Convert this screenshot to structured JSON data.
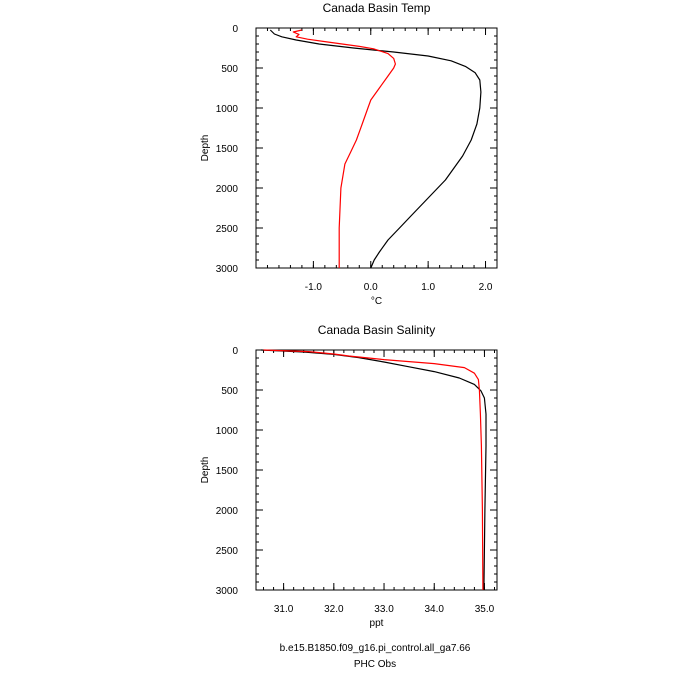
{
  "legend": {
    "model_label": "b.e15.B1850.f09_g16.pi_control.all_ga7.66",
    "obs_label": "PHC Obs",
    "model_color": "#000000",
    "obs_color": "#ff0000"
  },
  "chart_data": [
    {
      "type": "line",
      "title": "Canada Basin Temp",
      "xlabel": "°C",
      "ylabel": "Depth",
      "xlim": [
        -2.0,
        2.2
      ],
      "ylim": [
        3000,
        0
      ],
      "y_inverted": true,
      "xticks": [
        -1.0,
        0.0,
        1.0,
        2.0
      ],
      "xtick_labels": [
        "-1.0",
        "0.0",
        "1.0",
        "2.0"
      ],
      "yticks": [
        0,
        500,
        1000,
        1500,
        2000,
        2500,
        3000
      ],
      "ytick_labels": [
        "0",
        "500",
        "1000",
        "1500",
        "2000",
        "2500",
        "3000"
      ],
      "series": [
        {
          "name": "b.e15.B1850.f09_g16.pi_control.all_ga7.66",
          "color": "#000000",
          "x": [
            -1.75,
            -1.68,
            -1.55,
            -1.3,
            -0.9,
            -0.3,
            0.4,
            1.0,
            1.4,
            1.65,
            1.82,
            1.9,
            1.92,
            1.9,
            1.85,
            1.75,
            1.6,
            1.45,
            1.3,
            1.1,
            0.9,
            0.7,
            0.5,
            0.3,
            0.15,
            0.06,
            0.0
          ],
          "y": [
            25,
            75,
            110,
            150,
            200,
            250,
            300,
            350,
            410,
            480,
            560,
            650,
            800,
            1000,
            1200,
            1400,
            1600,
            1750,
            1900,
            2050,
            2200,
            2350,
            2500,
            2650,
            2800,
            2900,
            3000
          ]
        },
        {
          "name": "PHC Obs",
          "color": "#ff0000",
          "x": [
            -1.2,
            -1.35,
            -1.25,
            -1.3,
            -1.1,
            -0.8,
            -0.5,
            -0.2,
            0.05,
            0.3,
            0.4,
            0.43,
            0.4,
            0.3,
            0.15,
            0.0,
            -0.05,
            -0.15,
            -0.25,
            -0.35,
            -0.45,
            -0.52,
            -0.55,
            -0.55
          ],
          "y": [
            25,
            50,
            80,
            110,
            140,
            170,
            200,
            230,
            260,
            320,
            380,
            450,
            500,
            600,
            750,
            900,
            1000,
            1200,
            1400,
            1550,
            1700,
            2000,
            2500,
            3000
          ]
        }
      ]
    },
    {
      "type": "line",
      "title": "Canada Basin Salinity",
      "xlabel": "ppt",
      "ylabel": "Depth",
      "xlim": [
        30.45,
        35.25
      ],
      "ylim": [
        3000,
        0
      ],
      "y_inverted": true,
      "xticks": [
        31.0,
        32.0,
        33.0,
        34.0,
        35.0
      ],
      "xtick_labels": [
        "31.0",
        "32.0",
        "33.0",
        "34.0",
        "35.0"
      ],
      "yticks": [
        0,
        500,
        1000,
        1500,
        2000,
        2500,
        3000
      ],
      "ytick_labels": [
        "0",
        "500",
        "1000",
        "1500",
        "2000",
        "2500",
        "3000"
      ],
      "series": [
        {
          "name": "b.e15.B1850.f09_g16.pi_control.all_ga7.66",
          "color": "#000000",
          "x": [
            30.55,
            31.4,
            32.0,
            32.5,
            33.0,
            33.5,
            34.0,
            34.5,
            34.8,
            34.93,
            35.0,
            35.03,
            35.03,
            35.01,
            34.99
          ],
          "y": [
            0,
            25,
            55,
            95,
            150,
            210,
            270,
            350,
            430,
            510,
            600,
            800,
            1200,
            2000,
            3000
          ]
        },
        {
          "name": "PHC Obs",
          "color": "#ff0000",
          "x": [
            30.6,
            31.5,
            32.0,
            32.3,
            33.0,
            34.0,
            34.6,
            34.8,
            34.88,
            34.9,
            34.92,
            34.94,
            34.96,
            34.97
          ],
          "y": [
            0,
            20,
            50,
            75,
            120,
            170,
            220,
            290,
            370,
            500,
            800,
            1200,
            2000,
            3000
          ]
        }
      ]
    }
  ]
}
